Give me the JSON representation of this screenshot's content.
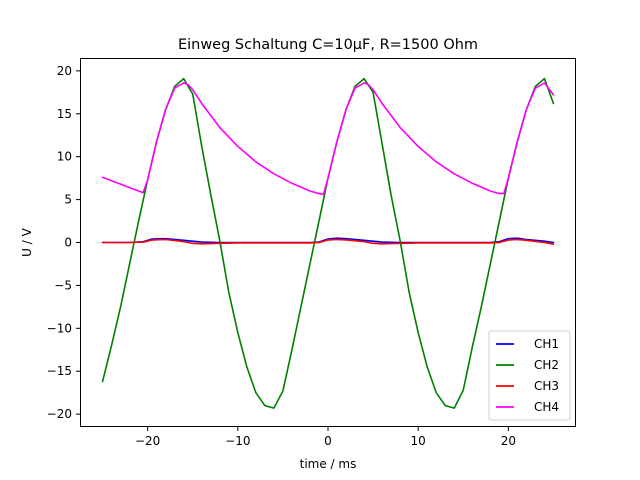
{
  "chart_data": {
    "type": "line",
    "title": "Einweg Schaltung C=10µF, R=1500 Ohm",
    "xlabel": "time / ms",
    "ylabel": "U / V",
    "xlim": [
      -27.5,
      27.5
    ],
    "ylim": [
      -21.5,
      21.5
    ],
    "xticks": [
      -20,
      -10,
      0,
      10,
      20
    ],
    "yticks": [
      -20,
      -15,
      -10,
      -5,
      0,
      5,
      10,
      15,
      20
    ],
    "xtick_labels": [
      "−20",
      "−10",
      "0",
      "10",
      "20"
    ],
    "ytick_labels": [
      "−20",
      "−15",
      "−10",
      "−5",
      "0",
      "5",
      "10",
      "15",
      "20"
    ],
    "grid": false,
    "legend_position": "lower right",
    "series": [
      {
        "name": "CH1",
        "color": "#0000ff",
        "x": [
          -25,
          -22,
          -20.5,
          -19.5,
          -18,
          -16,
          -14,
          -12,
          -10,
          -8,
          -6,
          -4,
          -2,
          -1,
          0,
          1,
          2,
          4,
          6,
          8,
          10,
          12,
          14,
          16,
          18,
          19,
          20,
          21,
          22,
          24,
          25
        ],
        "y": [
          0,
          0,
          0.1,
          0.4,
          0.45,
          0.25,
          0.05,
          0,
          0,
          0,
          0,
          0,
          0,
          0.05,
          0.4,
          0.5,
          0.45,
          0.25,
          0.05,
          0,
          0,
          0,
          0,
          0,
          0,
          0.1,
          0.45,
          0.5,
          0.35,
          0.15,
          0
        ]
      },
      {
        "name": "CH2",
        "color": "#008000",
        "x": [
          -25,
          -24,
          -23,
          -22,
          -21,
          -20,
          -19,
          -18,
          -17,
          -16,
          -15,
          -14,
          -13,
          -12,
          -11,
          -10,
          -9,
          -8,
          -7,
          -6,
          -5,
          -4,
          -3,
          -2,
          -1,
          0,
          1,
          2,
          3,
          4,
          5,
          6,
          7,
          8,
          9,
          10,
          11,
          12,
          13,
          14,
          15,
          16,
          17,
          18,
          19,
          20,
          21,
          22,
          23,
          24,
          25
        ],
        "y": [
          -16.2,
          -12,
          -7.5,
          -2.5,
          2.5,
          7.3,
          11.8,
          15.5,
          18.2,
          19.1,
          17.3,
          11.2,
          5.6,
          0.2,
          -5.8,
          -10.5,
          -14.5,
          -17.5,
          -19.0,
          -19.3,
          -17.3,
          -12.5,
          -7.5,
          -2.5,
          2.5,
          7.5,
          11.8,
          15.5,
          18.2,
          19.1,
          17.5,
          11.5,
          5.5,
          0.2,
          -5.8,
          -10.5,
          -14.5,
          -17.5,
          -19.0,
          -19.3,
          -17.2,
          -12.2,
          -7.5,
          -2.5,
          2.5,
          7.5,
          11.8,
          15.5,
          18.2,
          19.1,
          16.2
        ]
      },
      {
        "name": "CH3",
        "color": "#ff0000",
        "x": [
          -25,
          -22,
          -20.5,
          -19.5,
          -18,
          -16,
          -15,
          -14,
          -12,
          -10,
          -8,
          -6,
          -4,
          -2,
          -1,
          0,
          1,
          2,
          4,
          5,
          6,
          8,
          10,
          12,
          14,
          16,
          18,
          19,
          20,
          21,
          22,
          24,
          25
        ],
        "y": [
          0,
          0,
          0.05,
          0.3,
          0.35,
          0.1,
          -0.1,
          -0.15,
          -0.1,
          -0.05,
          -0.05,
          -0.05,
          -0.05,
          -0.05,
          0,
          0.3,
          0.35,
          0.3,
          0.1,
          -0.1,
          -0.15,
          -0.1,
          -0.05,
          -0.05,
          -0.05,
          -0.05,
          -0.05,
          0,
          0.3,
          0.35,
          0.25,
          0,
          -0.2
        ]
      },
      {
        "name": "CH4",
        "color": "#ff00ff",
        "x": [
          -25,
          -24,
          -23,
          -22,
          -21,
          -20.5,
          -20,
          -19,
          -18,
          -17,
          -16,
          -15.5,
          -15,
          -14,
          -12,
          -10,
          -8,
          -6,
          -4,
          -2,
          -1,
          -0.5,
          0,
          1,
          2,
          3,
          4,
          4.5,
          5,
          6,
          8,
          10,
          12,
          14,
          16,
          18,
          19,
          19.5,
          20,
          21,
          22,
          23,
          24,
          25
        ],
        "y": [
          7.6,
          7.2,
          6.8,
          6.4,
          6.0,
          5.8,
          7.3,
          11.8,
          15.5,
          18.0,
          18.6,
          18.4,
          17.8,
          16.2,
          13.4,
          11.2,
          9.4,
          8.0,
          6.9,
          6.0,
          5.7,
          5.6,
          7.5,
          11.8,
          15.5,
          18.0,
          18.6,
          18.4,
          17.8,
          16.2,
          13.4,
          11.2,
          9.4,
          8.0,
          6.9,
          6.0,
          5.7,
          5.7,
          7.5,
          11.8,
          15.5,
          18.0,
          18.6,
          17.2
        ]
      }
    ]
  }
}
